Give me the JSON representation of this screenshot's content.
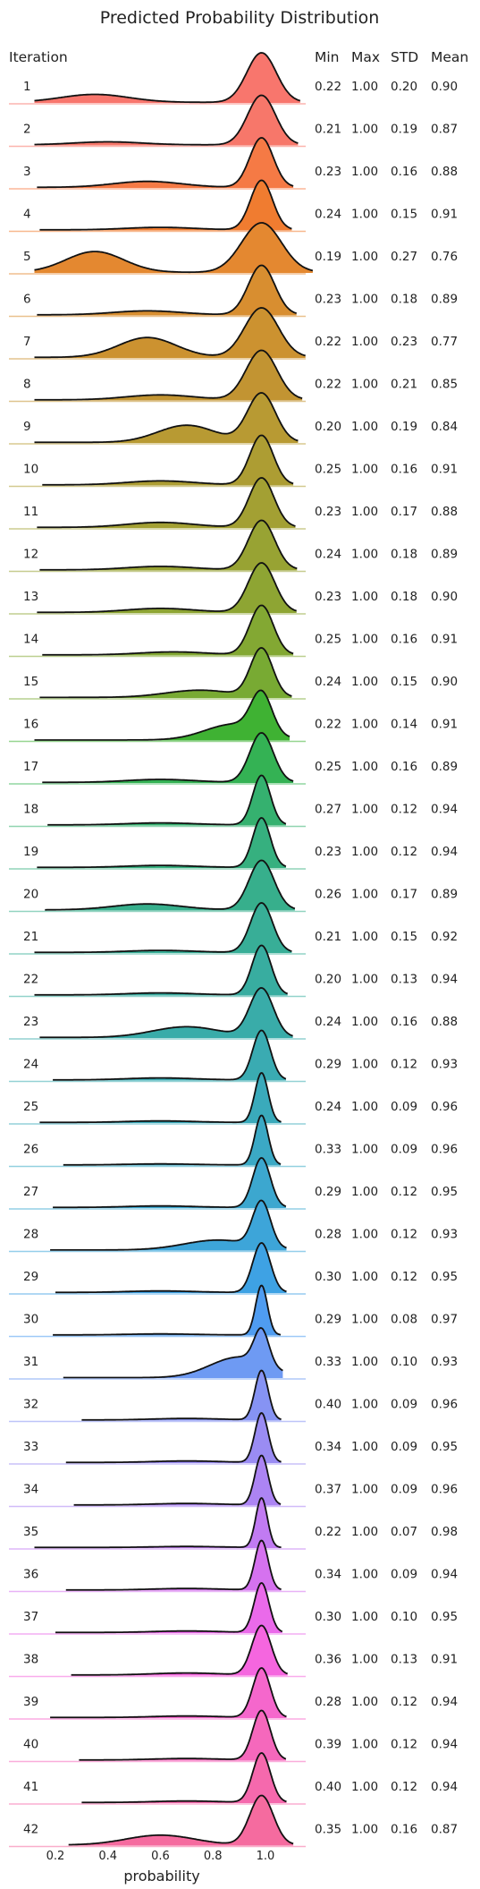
{
  "chart_data": {
    "type": "area",
    "title": "Predicted Probability Distribution",
    "xlabel": "probability",
    "ylabel": "",
    "xlim": [
      0.1,
      1.15
    ],
    "x_ticks": [
      "0.2",
      "0.4",
      "0.6",
      "0.8",
      "1.0"
    ],
    "x_tick_values": [
      0.2,
      0.4,
      0.6,
      0.8,
      1.0
    ],
    "row_header": "Iteration",
    "columns": [
      "Min",
      "Max",
      "STD",
      "Mean"
    ],
    "grid": false,
    "legend": "none",
    "series": [
      {
        "name": "1",
        "min": 0.22,
        "max": 1.0,
        "std": 0.2,
        "mean": 0.9,
        "color": "#f8766d",
        "secondary": [
          0.35,
          0.16
        ]
      },
      {
        "name": "2",
        "min": 0.21,
        "max": 1.0,
        "std": 0.19,
        "mean": 0.87,
        "color": "#f7776a",
        "secondary": [
          0.4,
          0.06
        ]
      },
      {
        "name": "3",
        "min": 0.23,
        "max": 1.0,
        "std": 0.16,
        "mean": 0.88,
        "color": "#f57a45",
        "secondary": [
          0.55,
          0.12
        ]
      },
      {
        "name": "4",
        "min": 0.24,
        "max": 1.0,
        "std": 0.15,
        "mean": 0.91,
        "color": "#f07c30",
        "secondary": [
          0.6,
          0.05
        ]
      },
      {
        "name": "5",
        "min": 0.19,
        "max": 1.0,
        "std": 0.27,
        "mean": 0.76,
        "color": "#e48830",
        "secondary": [
          0.35,
          0.42
        ]
      },
      {
        "name": "6",
        "min": 0.23,
        "max": 1.0,
        "std": 0.18,
        "mean": 0.89,
        "color": "#d88e30",
        "secondary": [
          0.55,
          0.08
        ]
      },
      {
        "name": "7",
        "min": 0.22,
        "max": 1.0,
        "std": 0.23,
        "mean": 0.77,
        "color": "#cc9230",
        "secondary": [
          0.55,
          0.4
        ]
      },
      {
        "name": "8",
        "min": 0.22,
        "max": 1.0,
        "std": 0.21,
        "mean": 0.85,
        "color": "#c29432",
        "secondary": [
          0.6,
          0.1
        ]
      },
      {
        "name": "9",
        "min": 0.2,
        "max": 1.0,
        "std": 0.19,
        "mean": 0.84,
        "color": "#b89a33",
        "secondary": [
          0.7,
          0.35
        ]
      },
      {
        "name": "10",
        "min": 0.25,
        "max": 1.0,
        "std": 0.16,
        "mean": 0.91,
        "color": "#ad9d33",
        "secondary": [
          0.6,
          0.08
        ]
      },
      {
        "name": "11",
        "min": 0.23,
        "max": 1.0,
        "std": 0.17,
        "mean": 0.88,
        "color": "#a3a033",
        "secondary": [
          0.6,
          0.1
        ]
      },
      {
        "name": "12",
        "min": 0.24,
        "max": 1.0,
        "std": 0.18,
        "mean": 0.89,
        "color": "#98a333",
        "secondary": [
          0.6,
          0.07
        ]
      },
      {
        "name": "13",
        "min": 0.23,
        "max": 1.0,
        "std": 0.18,
        "mean": 0.9,
        "color": "#8ea533",
        "secondary": [
          0.6,
          0.08
        ]
      },
      {
        "name": "14",
        "min": 0.25,
        "max": 1.0,
        "std": 0.16,
        "mean": 0.91,
        "color": "#83a833",
        "secondary": [
          0.65,
          0.06
        ]
      },
      {
        "name": "15",
        "min": 0.24,
        "max": 1.0,
        "std": 0.15,
        "mean": 0.9,
        "color": "#78aa33",
        "secondary": [
          0.75,
          0.15
        ]
      },
      {
        "name": "16",
        "min": 0.22,
        "max": 1.0,
        "std": 0.14,
        "mean": 0.91,
        "color": "#3fb233",
        "secondary": [
          0.88,
          0.4
        ]
      },
      {
        "name": "17",
        "min": 0.25,
        "max": 1.0,
        "std": 0.16,
        "mean": 0.89,
        "color": "#34b254",
        "secondary": [
          0.6,
          0.06
        ]
      },
      {
        "name": "18",
        "min": 0.27,
        "max": 1.0,
        "std": 0.12,
        "mean": 0.94,
        "color": "#35b16f",
        "secondary": [
          0.6,
          0.04
        ]
      },
      {
        "name": "19",
        "min": 0.23,
        "max": 1.0,
        "std": 0.12,
        "mean": 0.94,
        "color": "#36b07f",
        "secondary": [
          0.6,
          0.04
        ]
      },
      {
        "name": "20",
        "min": 0.26,
        "max": 1.0,
        "std": 0.17,
        "mean": 0.89,
        "color": "#37af8c",
        "secondary": [
          0.55,
          0.12
        ]
      },
      {
        "name": "21",
        "min": 0.21,
        "max": 1.0,
        "std": 0.15,
        "mean": 0.92,
        "color": "#38ae97",
        "secondary": [
          0.6,
          0.04
        ]
      },
      {
        "name": "22",
        "min": 0.2,
        "max": 1.0,
        "std": 0.13,
        "mean": 0.94,
        "color": "#38ada0",
        "secondary": [
          0.6,
          0.04
        ]
      },
      {
        "name": "23",
        "min": 0.24,
        "max": 1.0,
        "std": 0.16,
        "mean": 0.88,
        "color": "#39aca9",
        "secondary": [
          0.7,
          0.22
        ]
      },
      {
        "name": "24",
        "min": 0.29,
        "max": 1.0,
        "std": 0.12,
        "mean": 0.93,
        "color": "#3aabb2",
        "secondary": [
          0.6,
          0.04
        ]
      },
      {
        "name": "25",
        "min": 0.24,
        "max": 1.0,
        "std": 0.09,
        "mean": 0.96,
        "color": "#3aaabb",
        "secondary": [
          0.6,
          0.03
        ]
      },
      {
        "name": "26",
        "min": 0.33,
        "max": 1.0,
        "std": 0.09,
        "mean": 0.96,
        "color": "#3ba9c5",
        "secondary": [
          0.6,
          0.02
        ]
      },
      {
        "name": "27",
        "min": 0.29,
        "max": 1.0,
        "std": 0.12,
        "mean": 0.95,
        "color": "#3ca7cf",
        "secondary": [
          0.6,
          0.03
        ]
      },
      {
        "name": "28",
        "min": 0.28,
        "max": 1.0,
        "std": 0.12,
        "mean": 0.93,
        "color": "#3da5d9",
        "secondary": [
          0.82,
          0.22
        ]
      },
      {
        "name": "29",
        "min": 0.3,
        "max": 1.0,
        "std": 0.12,
        "mean": 0.95,
        "color": "#3ea2e4",
        "secondary": [
          0.6,
          0.03
        ]
      },
      {
        "name": "30",
        "min": 0.29,
        "max": 1.0,
        "std": 0.08,
        "mean": 0.97,
        "color": "#4f9cf0",
        "secondary": [
          0.6,
          0.02
        ]
      },
      {
        "name": "31",
        "min": 0.33,
        "max": 1.0,
        "std": 0.1,
        "mean": 0.93,
        "color": "#6e9af3",
        "secondary": [
          0.9,
          0.6
        ]
      },
      {
        "name": "32",
        "min": 0.4,
        "max": 1.0,
        "std": 0.09,
        "mean": 0.96,
        "color": "#8693f3",
        "secondary": [
          0.7,
          0.03
        ]
      },
      {
        "name": "33",
        "min": 0.34,
        "max": 1.0,
        "std": 0.09,
        "mean": 0.95,
        "color": "#9a8cf3",
        "secondary": [
          0.7,
          0.03
        ]
      },
      {
        "name": "34",
        "min": 0.37,
        "max": 1.0,
        "std": 0.09,
        "mean": 0.96,
        "color": "#ac84f3",
        "secondary": [
          0.7,
          0.03
        ]
      },
      {
        "name": "35",
        "min": 0.22,
        "max": 1.0,
        "std": 0.07,
        "mean": 0.98,
        "color": "#c17bf2",
        "secondary": [
          0.7,
          0.02
        ]
      },
      {
        "name": "36",
        "min": 0.34,
        "max": 1.0,
        "std": 0.09,
        "mean": 0.94,
        "color": "#d572ef",
        "secondary": [
          0.7,
          0.03
        ]
      },
      {
        "name": "37",
        "min": 0.3,
        "max": 1.0,
        "std": 0.1,
        "mean": 0.95,
        "color": "#ea6aea",
        "secondary": [
          0.7,
          0.03
        ]
      },
      {
        "name": "38",
        "min": 0.36,
        "max": 1.0,
        "std": 0.13,
        "mean": 0.91,
        "color": "#f566df",
        "secondary": [
          0.7,
          0.04
        ]
      },
      {
        "name": "39",
        "min": 0.28,
        "max": 1.0,
        "std": 0.12,
        "mean": 0.94,
        "color": "#f567cc",
        "secondary": [
          0.7,
          0.03
        ]
      },
      {
        "name": "40",
        "min": 0.39,
        "max": 1.0,
        "std": 0.12,
        "mean": 0.94,
        "color": "#f568bc",
        "secondary": [
          0.7,
          0.03
        ]
      },
      {
        "name": "41",
        "min": 0.4,
        "max": 1.0,
        "std": 0.12,
        "mean": 0.94,
        "color": "#f569ad",
        "secondary": [
          0.7,
          0.03
        ]
      },
      {
        "name": "42",
        "min": 0.35,
        "max": 1.0,
        "std": 0.16,
        "mean": 0.87,
        "color": "#f56b9f",
        "secondary": [
          0.6,
          0.2
        ]
      }
    ]
  }
}
